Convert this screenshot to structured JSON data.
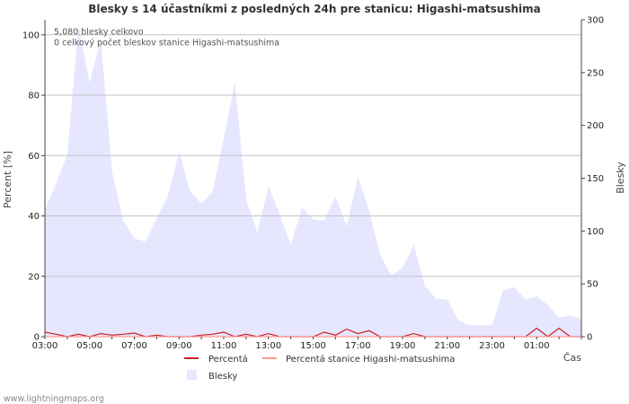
{
  "chart_data": {
    "type": "area",
    "title": "Blesky s 14 účastníkmi z posledných 24h pre stanicu: Higashi-matsushima",
    "xlabel": "Čas",
    "ylabel_left": "Percent   [%]",
    "ylabel_right": "Blesky",
    "ylim_left": [
      0,
      105
    ],
    "ylim_right": [
      0,
      300
    ],
    "xlim": [
      3.0,
      27.0
    ],
    "x_ticks": [
      {
        "x": 3,
        "label": "03:00"
      },
      {
        "x": 5,
        "label": "05:00"
      },
      {
        "x": 7,
        "label": "07:00"
      },
      {
        "x": 9,
        "label": "09:00"
      },
      {
        "x": 11,
        "label": "11:00"
      },
      {
        "x": 13,
        "label": "13:00"
      },
      {
        "x": 15,
        "label": "15:00"
      },
      {
        "x": 17,
        "label": "17:00"
      },
      {
        "x": 19,
        "label": "19:00"
      },
      {
        "x": 21,
        "label": "21:00"
      },
      {
        "x": 23,
        "label": "23:00"
      },
      {
        "x": 25,
        "label": "01:00"
      }
    ],
    "left_ticks": [
      0,
      20,
      40,
      60,
      80,
      100
    ],
    "right_ticks": [
      0,
      50,
      100,
      150,
      200,
      250,
      300
    ],
    "annotations": [
      "5,080 blesky celkovo",
      "0 celkový počet bleskov stanice Higashi-matsushima"
    ],
    "series": [
      {
        "name": "Blesky",
        "axis": "right",
        "style": "area",
        "color": "#e6e6fe",
        "x": [
          3.0,
          3.5,
          4.0,
          4.5,
          5.0,
          5.5,
          6.0,
          6.5,
          7.0,
          7.5,
          8.0,
          8.5,
          9.0,
          9.5,
          10.0,
          10.5,
          11.0,
          11.5,
          12.0,
          12.5,
          13.0,
          13.5,
          14.0,
          14.5,
          15.0,
          15.5,
          16.0,
          16.5,
          17.0,
          17.5,
          18.0,
          18.5,
          19.0,
          19.5,
          20.0,
          20.5,
          21.0,
          21.5,
          22.0,
          22.5,
          23.0,
          23.5,
          24.0,
          24.5,
          25.0,
          25.5,
          26.0,
          26.5,
          27.0
        ],
        "values": [
          120,
          145,
          172,
          295,
          240,
          282,
          157,
          110,
          93,
          90,
          112,
          133,
          175,
          137,
          126,
          137,
          188,
          241,
          130,
          99,
          142,
          116,
          87,
          122,
          111,
          110,
          133,
          104,
          151,
          120,
          77,
          58,
          65,
          87,
          48,
          36,
          35,
          15,
          11,
          11,
          11,
          44,
          47,
          35,
          38,
          30,
          18,
          20,
          17
        ]
      },
      {
        "name": "Percentá",
        "axis": "left",
        "style": "line",
        "color": "#cc2222",
        "x": [
          3.0,
          3.5,
          4.0,
          4.5,
          5.0,
          5.5,
          6.0,
          6.5,
          7.0,
          7.5,
          8.0,
          8.5,
          9.0,
          9.5,
          10.0,
          10.5,
          11.0,
          11.5,
          12.0,
          12.5,
          13.0,
          13.5,
          14.0,
          14.5,
          15.0,
          15.5,
          16.0,
          16.5,
          17.0,
          17.5,
          18.0,
          18.5,
          19.0,
          19.5,
          20.0,
          20.5,
          21.0,
          21.5,
          22.0,
          22.5,
          23.0,
          23.5,
          24.0,
          24.5,
          25.0,
          25.5,
          26.0,
          26.5,
          27.0
        ],
        "values": [
          1.5,
          0.8,
          0,
          0.8,
          0,
          1.0,
          0.5,
          0.8,
          1.2,
          0,
          0.5,
          0,
          0,
          0,
          0.5,
          0.8,
          1.5,
          0,
          0.8,
          0,
          1.0,
          0,
          0,
          0,
          0,
          1.5,
          0.5,
          2.5,
          1.0,
          2.0,
          0,
          0,
          0,
          1.0,
          0,
          0,
          0,
          0,
          0,
          0,
          0,
          0,
          0,
          0,
          2.8,
          0,
          2.8,
          0,
          0
        ]
      },
      {
        "name": "Percentá stanice Higashi-matsushima",
        "axis": "left",
        "style": "line",
        "color": "#ff9999",
        "x": [
          3.0,
          27.0
        ],
        "values": [
          0,
          0
        ]
      }
    ],
    "legend": [
      {
        "label": "Percentá",
        "type": "line",
        "color": "#cc2222"
      },
      {
        "label": "Percentá stanice Higashi-matsushima",
        "type": "line",
        "color": "#ff9999"
      },
      {
        "label": "Blesky",
        "type": "box",
        "color": "#e6e6fe"
      }
    ]
  },
  "footer": "www.lightningmaps.org"
}
